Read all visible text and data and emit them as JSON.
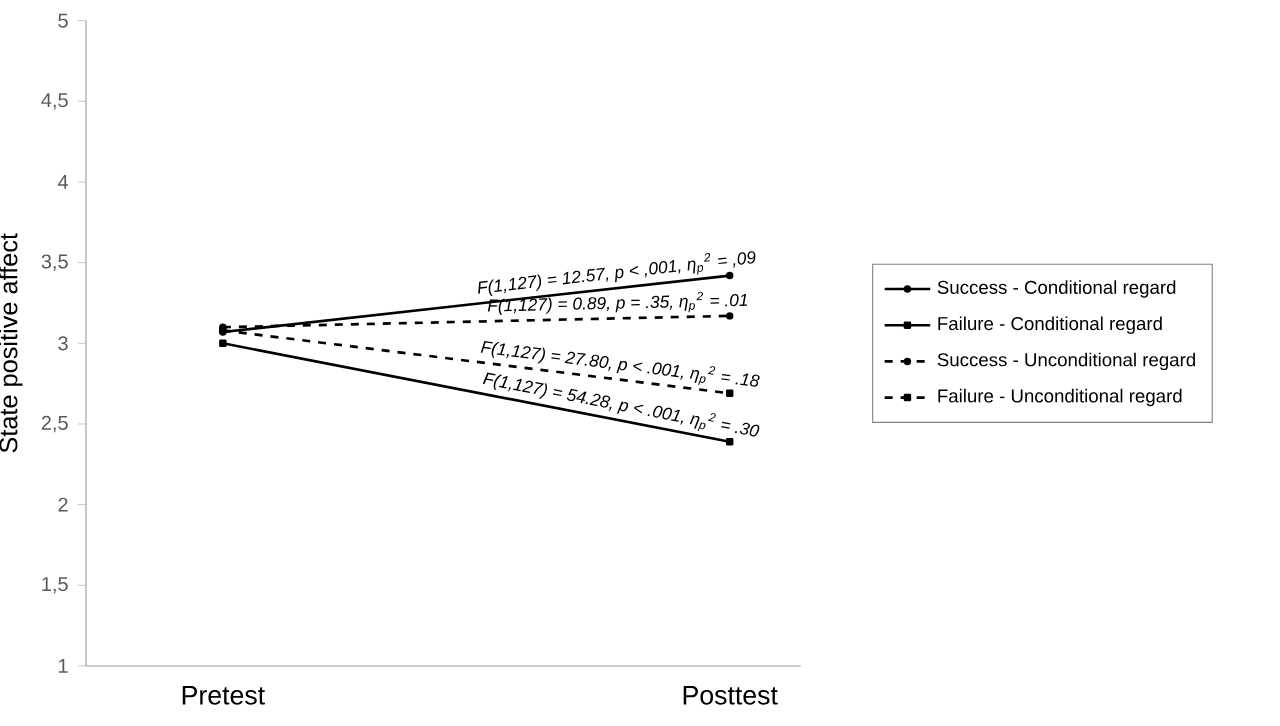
{
  "chart_data": {
    "type": "line",
    "ylabel": "State positive affect",
    "categories": [
      "Pretest",
      "Posttest"
    ],
    "series": [
      {
        "name": "Success - Conditional regard",
        "color": "#000000",
        "values": [
          3.07,
          3.42
        ],
        "marker": "circle",
        "line_style": "solid"
      },
      {
        "name": "Failure - Conditional regard",
        "color": "#000000",
        "values": [
          3.0,
          2.39
        ],
        "marker": "square",
        "line_style": "solid"
      },
      {
        "name": "Success - Unconditional regard",
        "color": "#000000",
        "values": [
          3.1,
          3.17
        ],
        "marker": "circle",
        "line_style": "dashed"
      },
      {
        "name": "Failure - Unconditional regard",
        "color": "#000000",
        "values": [
          3.08,
          2.69
        ],
        "marker": "square",
        "line_style": "dashed"
      }
    ],
    "annotations": [
      {
        "text": "F(1,127) = 12.57, p < ,001, η$_{p}$$^{2}$ = ,09",
        "x": "Posttest",
        "y": 3.42
      },
      {
        "text": "F(1,127) = 54.28, p < .001, η$_{p}$$^{2}$ = .30",
        "x": "Posttest",
        "y": 2.39
      },
      {
        "text": "F(1,127) = 0.89, p = .35, η$_{p}$$^{2}$ = .01",
        "x": "Posttest",
        "y": 3.17
      },
      {
        "text": "F(1,127) = 27.80, p < .001, η$_{p}$$^{2}$ = .18",
        "x": "Posttest",
        "y": 2.69
      }
    ],
    "ylim": [
      1,
      5
    ],
    "yticks": [
      1,
      {
        "value": 1.5,
        "label": "1,5"
      },
      2,
      {
        "value": 2.5,
        "label": "2,5"
      },
      3,
      {
        "value": 3.5,
        "label": "3,5"
      },
      4,
      {
        "value": 4.5,
        "label": "4,5"
      },
      5
    ],
    "grid": false,
    "legend": "right"
  }
}
